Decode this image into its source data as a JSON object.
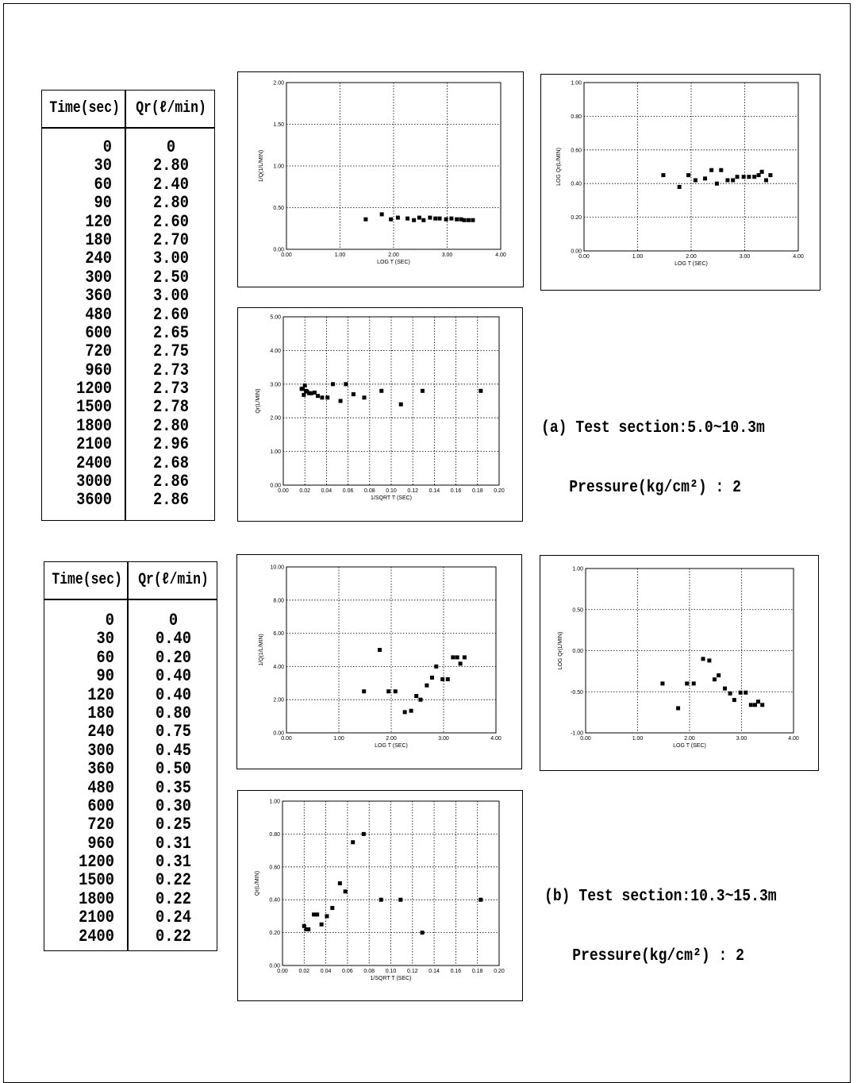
{
  "tables": [
    {
      "header_time": "Time(sec)",
      "header_qr": "Qr(ℓ/min)",
      "time": [
        "0",
        "30",
        "60",
        "90",
        "120",
        "180",
        "240",
        "300",
        "360",
        "480",
        "600",
        "720",
        "960",
        "1200",
        "1500",
        "1800",
        "2100",
        "2400",
        "3000",
        "3600"
      ],
      "qr": [
        "0",
        "2.80",
        "2.40",
        "2.80",
        "2.60",
        "2.70",
        "3.00",
        "2.50",
        "3.00",
        "2.60",
        "2.65",
        "2.75",
        "2.73",
        "2.73",
        "2.78",
        "2.80",
        "2.96",
        "2.68",
        "2.86",
        "2.86"
      ]
    },
    {
      "header_time": "Time(sec)",
      "header_qr": "Qr(ℓ/min)",
      "time": [
        "0",
        "30",
        "60",
        "90",
        "120",
        "180",
        "240",
        "300",
        "360",
        "480",
        "600",
        "720",
        "960",
        "1200",
        "1500",
        "1800",
        "2100",
        "2400"
      ],
      "qr": [
        "0",
        "0.40",
        "0.20",
        "0.40",
        "0.40",
        "0.80",
        "0.75",
        "0.45",
        "0.50",
        "0.35",
        "0.30",
        "0.25",
        "0.31",
        "0.31",
        "0.22",
        "0.22",
        "0.24",
        "0.22"
      ]
    }
  ],
  "captions": {
    "a": {
      "line1": "(a) Test section:5.0~10.3m",
      "line2": "Pressure(kg/cm²) : 2"
    },
    "b": {
      "line1": "(b) Test section:10.3~15.3m",
      "line2": "Pressure(kg/cm²) : 2"
    }
  },
  "chart_data": [
    {
      "id": "a-inv",
      "type": "scatter",
      "xlabel": "LOG T (SEC)",
      "ylabel": "1/Q(1/L/MIN)",
      "xlim": [
        0,
        4
      ],
      "ylim": [
        0,
        2
      ],
      "xticks": [
        "0.00",
        "1.00",
        "2.00",
        "3.00",
        "4.00"
      ],
      "yticks": [
        "0.00",
        "0.50",
        "1.00",
        "1.50",
        "2.00"
      ],
      "x": [
        1.48,
        1.78,
        1.95,
        2.08,
        2.26,
        2.38,
        2.48,
        2.56,
        2.68,
        2.78,
        2.86,
        2.98,
        3.08,
        3.18,
        3.26,
        3.32,
        3.4,
        3.48
      ],
      "y": [
        0.36,
        0.42,
        0.36,
        0.38,
        0.37,
        0.35,
        0.38,
        0.35,
        0.38,
        0.37,
        0.37,
        0.36,
        0.37,
        0.36,
        0.36,
        0.35,
        0.35,
        0.35
      ]
    },
    {
      "id": "a-log",
      "type": "scatter",
      "xlabel": "LOG T (SEC)",
      "ylabel": "LOG Qr(L/MIN)",
      "xlim": [
        0,
        4
      ],
      "ylim": [
        0,
        1
      ],
      "xticks": [
        "0.00",
        "1.00",
        "2.00",
        "3.00",
        "4.00"
      ],
      "yticks": [
        "0.00",
        "0.20",
        "0.40",
        "0.60",
        "0.80",
        "1.00"
      ],
      "x": [
        1.48,
        1.78,
        1.95,
        2.08,
        2.26,
        2.38,
        2.48,
        2.56,
        2.68,
        2.78,
        2.86,
        2.98,
        3.08,
        3.18,
        3.26,
        3.32,
        3.4,
        3.48
      ],
      "y": [
        0.45,
        0.38,
        0.45,
        0.42,
        0.43,
        0.48,
        0.4,
        0.48,
        0.42,
        0.42,
        0.44,
        0.44,
        0.44,
        0.44,
        0.45,
        0.47,
        0.42,
        0.45
      ]
    },
    {
      "id": "a-sqrt",
      "type": "scatter",
      "xlabel": "1/SQRT T (SEC)",
      "ylabel": "Qr(L/MIN)",
      "xlim": [
        0,
        0.2
      ],
      "ylim": [
        0,
        5
      ],
      "xticks": [
        "0.00",
        "0.02",
        "0.04",
        "0.06",
        "0.08",
        "0.10",
        "0.12",
        "0.14",
        "0.16",
        "0.18",
        "0.20"
      ],
      "yticks": [
        "0.00",
        "1.00",
        "2.00",
        "3.00",
        "4.00",
        "5.00"
      ],
      "x": [
        0.017,
        0.018,
        0.019,
        0.02,
        0.021,
        0.022,
        0.024,
        0.026,
        0.029,
        0.032,
        0.036,
        0.041,
        0.046,
        0.053,
        0.058,
        0.065,
        0.075,
        0.091,
        0.109,
        0.129,
        0.183
      ],
      "y": [
        2.86,
        2.86,
        2.68,
        2.96,
        2.8,
        2.78,
        2.73,
        2.73,
        2.75,
        2.65,
        2.6,
        2.6,
        3.0,
        2.5,
        3.0,
        2.7,
        2.6,
        2.8,
        2.4,
        2.8,
        2.8
      ]
    },
    {
      "id": "b-inv",
      "type": "scatter",
      "xlabel": "LOG T (SEC)",
      "ylabel": "1/Q(1/L/MIN)",
      "xlim": [
        0,
        4
      ],
      "ylim": [
        0,
        10
      ],
      "xticks": [
        "0.00",
        "1.00",
        "2.00",
        "3.00",
        "4.00"
      ],
      "yticks": [
        "0.00",
        "2.00",
        "4.00",
        "6.00",
        "8.00",
        "10.00"
      ],
      "x": [
        1.48,
        1.78,
        1.95,
        2.08,
        2.26,
        2.38,
        2.48,
        2.56,
        2.68,
        2.78,
        2.86,
        2.98,
        3.08,
        3.18,
        3.26,
        3.32,
        3.4
      ],
      "y": [
        2.5,
        5.0,
        2.5,
        2.5,
        1.25,
        1.33,
        2.22,
        2.0,
        2.86,
        3.33,
        4.0,
        3.23,
        3.23,
        4.55,
        4.55,
        4.17,
        4.55
      ]
    },
    {
      "id": "b-log",
      "type": "scatter",
      "xlabel": "LOG T (SEC)",
      "ylabel": "LOG Qr(L/MIN)",
      "xlim": [
        0,
        4
      ],
      "ylim": [
        -1,
        1
      ],
      "xticks": [
        "0.00",
        "1.00",
        "2.00",
        "3.00",
        "4.00"
      ],
      "yticks": [
        "-1.00",
        "-0.50",
        "0.00",
        "0.50",
        "1.00"
      ],
      "x": [
        1.48,
        1.78,
        1.95,
        2.08,
        2.26,
        2.38,
        2.48,
        2.56,
        2.68,
        2.78,
        2.86,
        2.98,
        3.08,
        3.18,
        3.26,
        3.32,
        3.4
      ],
      "y": [
        -0.4,
        -0.7,
        -0.4,
        -0.4,
        -0.1,
        -0.12,
        -0.35,
        -0.3,
        -0.46,
        -0.52,
        -0.6,
        -0.51,
        -0.51,
        -0.66,
        -0.66,
        -0.62,
        -0.66
      ]
    },
    {
      "id": "b-sqrt",
      "type": "scatter",
      "xlabel": "1/SQRT T (SEC)",
      "ylabel": "Qr(L/MIN)",
      "xlim": [
        0,
        0.2
      ],
      "ylim": [
        0,
        1
      ],
      "xticks": [
        "0.00",
        "0.02",
        "0.04",
        "0.06",
        "0.08",
        "0.10",
        "0.12",
        "0.14",
        "0.16",
        "0.18",
        "0.20"
      ],
      "yticks": [
        "0.00",
        "0.20",
        "0.40",
        "0.60",
        "0.80",
        "1.00"
      ],
      "x": [
        0.02,
        0.022,
        0.024,
        0.029,
        0.032,
        0.036,
        0.041,
        0.046,
        0.053,
        0.058,
        0.065,
        0.075,
        0.091,
        0.109,
        0.129,
        0.183
      ],
      "y": [
        0.24,
        0.22,
        0.22,
        0.31,
        0.31,
        0.25,
        0.3,
        0.35,
        0.5,
        0.45,
        0.75,
        0.8,
        0.4,
        0.4,
        0.2,
        0.4
      ]
    }
  ]
}
